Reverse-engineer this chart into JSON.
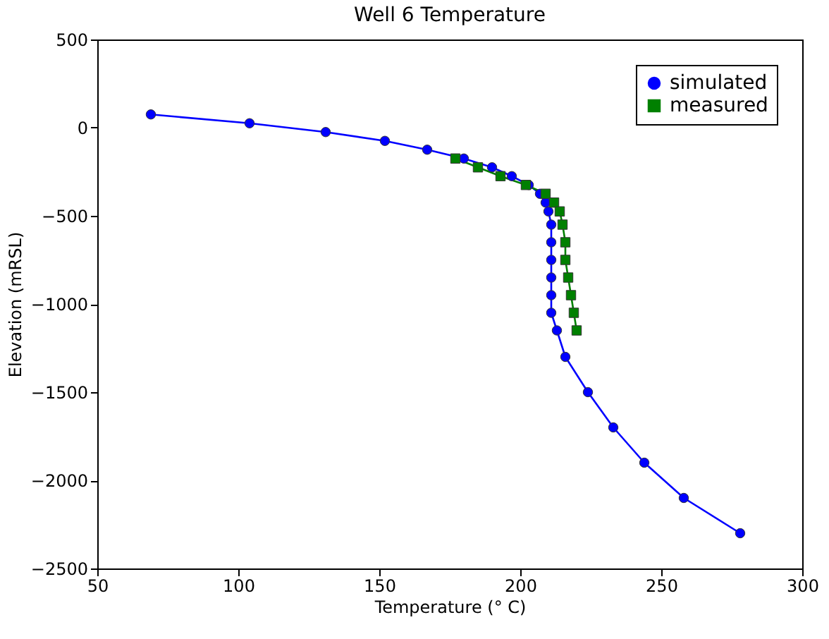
{
  "chart_data": {
    "type": "line",
    "title": "Well 6 Temperature",
    "xlabel": "Temperature (° C)",
    "ylabel": "Elevation (mRSL)",
    "xlim": [
      50,
      300
    ],
    "xticks": [
      50,
      100,
      150,
      200,
      250,
      300
    ],
    "ylim": [
      -2500,
      500
    ],
    "yticks": [
      -2500,
      -2000,
      -1500,
      -1000,
      -500,
      0,
      500
    ],
    "grid": false,
    "legend": "top right",
    "series": [
      {
        "name": "simulated",
        "color": "#0000ff",
        "marker": "circle",
        "x": [
          69,
          104,
          131,
          152,
          167,
          180,
          190,
          197,
          203,
          207,
          209,
          210,
          211,
          211,
          211,
          211,
          211,
          211,
          213,
          216,
          224,
          233,
          244,
          258,
          278
        ],
        "values": [
          75,
          25,
          -25,
          -75,
          -125,
          -175,
          -225,
          -275,
          -325,
          -375,
          -425,
          -475,
          -550,
          -650,
          -750,
          -850,
          -950,
          -1050,
          -1150,
          -1300,
          -1500,
          -1700,
          -1900,
          -2100,
          -2300
        ]
      },
      {
        "name": "measured",
        "color": "#008000",
        "marker": "square",
        "x": [
          177,
          185,
          193,
          202,
          209,
          212,
          214,
          215,
          216,
          216,
          217,
          218,
          219,
          220
        ],
        "values": [
          -175,
          -225,
          -275,
          -325,
          -375,
          -425,
          -475,
          -550,
          -650,
          -750,
          -850,
          -950,
          -1050,
          -1150
        ]
      }
    ]
  }
}
